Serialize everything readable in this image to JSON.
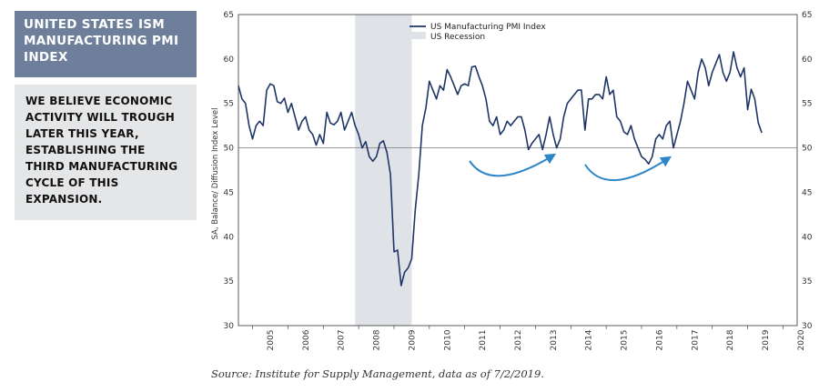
{
  "header": {
    "title": "UNITED STATES ISM\nMANUFACTURING PMI\nINDEX"
  },
  "callout": {
    "text": "WE BELIEVE ECONOMIC\nACTIVITY WILL TROUGH\nLATER THIS YEAR,\nESTABLISHING THE\nTHIRD MANUFACTURING\nCYCLE OF THIS\nEXPANSION."
  },
  "footer": {
    "source": "Source: Institute for Supply Management, data as of 7/2/2019."
  },
  "colors": {
    "series": "#1f3566",
    "recession": "#dfe2e6",
    "arrow": "#2e86c9",
    "reference_line": "#888888"
  },
  "chart_data": {
    "type": "line",
    "ylabel": "SA, Balance/ Diffusion Index Level",
    "xlabel": "",
    "ylim": [
      30,
      65
    ],
    "y_ticks": [
      30,
      35,
      40,
      45,
      50,
      55,
      60,
      65
    ],
    "x_range": [
      2004.6,
      2020.4
    ],
    "x_tick_labels": [
      "2005",
      "2006",
      "2007",
      "2008",
      "2009",
      "2010",
      "2011",
      "2012",
      "2013",
      "2014",
      "2015",
      "2016",
      "2017",
      "2018",
      "2019",
      "2020"
    ],
    "reference_line": 50,
    "grid": false,
    "legend": {
      "placement": "top-left",
      "entries": [
        "US Manufacturing PMI Index",
        "US Recession"
      ]
    },
    "recession": {
      "start": 2007.9,
      "end": 2009.5
    },
    "series": [
      {
        "name": "US Manufacturing PMI Index",
        "x": [
          2004.6,
          2004.7,
          2004.8,
          2004.9,
          2005.0,
          2005.1,
          2005.2,
          2005.3,
          2005.4,
          2005.5,
          2005.6,
          2005.7,
          2005.8,
          2005.9,
          2006.0,
          2006.1,
          2006.2,
          2006.3,
          2006.4,
          2006.5,
          2006.6,
          2006.7,
          2006.8,
          2006.9,
          2007.0,
          2007.1,
          2007.2,
          2007.3,
          2007.4,
          2007.5,
          2007.6,
          2007.7,
          2007.8,
          2007.9,
          2008.0,
          2008.1,
          2008.2,
          2008.3,
          2008.4,
          2008.5,
          2008.6,
          2008.7,
          2008.8,
          2008.9,
          2009.0,
          2009.1,
          2009.2,
          2009.3,
          2009.4,
          2009.5,
          2009.6,
          2009.7,
          2009.8,
          2009.9,
          2010.0,
          2010.1,
          2010.2,
          2010.3,
          2010.4,
          2010.5,
          2010.6,
          2010.7,
          2010.8,
          2010.9,
          2011.0,
          2011.1,
          2011.2,
          2011.3,
          2011.4,
          2011.5,
          2011.6,
          2011.7,
          2011.8,
          2011.9,
          2012.0,
          2012.1,
          2012.2,
          2012.3,
          2012.4,
          2012.5,
          2012.6,
          2012.7,
          2012.8,
          2012.9,
          2013.0,
          2013.1,
          2013.2,
          2013.3,
          2013.4,
          2013.5,
          2013.6,
          2013.7,
          2013.8,
          2013.9,
          2014.0,
          2014.1,
          2014.2,
          2014.3,
          2014.4,
          2014.5,
          2014.6,
          2014.7,
          2014.8,
          2014.9,
          2015.0,
          2015.1,
          2015.2,
          2015.3,
          2015.4,
          2015.5,
          2015.6,
          2015.7,
          2015.8,
          2015.9,
          2016.0,
          2016.1,
          2016.2,
          2016.3,
          2016.4,
          2016.5,
          2016.6,
          2016.7,
          2016.8,
          2016.9,
          2017.0,
          2017.1,
          2017.2,
          2017.3,
          2017.4,
          2017.5,
          2017.6,
          2017.7,
          2017.8,
          2017.9,
          2018.0,
          2018.1,
          2018.2,
          2018.3,
          2018.4,
          2018.5,
          2018.6,
          2018.7,
          2018.8,
          2018.9,
          2019.0,
          2019.1,
          2019.2,
          2019.3,
          2019.4
        ],
        "values": [
          57.0,
          55.5,
          55.0,
          52.5,
          51.0,
          52.5,
          53.0,
          52.5,
          56.5,
          57.2,
          57.0,
          55.2,
          55.0,
          55.6,
          54.0,
          55.0,
          53.5,
          52.0,
          53.0,
          53.5,
          52.0,
          51.5,
          50.3,
          51.5,
          50.5,
          54.0,
          52.8,
          52.6,
          53.0,
          54.0,
          52.0,
          53.0,
          54.0,
          52.5,
          51.5,
          50.0,
          50.7,
          49.0,
          48.5,
          49.0,
          50.5,
          50.8,
          49.5,
          47.0,
          38.3,
          38.5,
          34.5,
          36.0,
          36.5,
          37.5,
          43.0,
          47.0,
          52.5,
          54.5,
          57.5,
          56.5,
          55.5,
          57.0,
          56.5,
          58.8,
          58.0,
          57.0,
          56.0,
          57.0,
          57.2,
          57.0,
          59.1,
          59.2,
          58.0,
          57.0,
          55.5,
          53.0,
          52.5,
          53.5,
          51.5,
          52.0,
          53.0,
          52.5,
          53.0,
          53.5,
          53.5,
          52.0,
          49.8,
          50.5,
          51.0,
          51.5,
          49.8,
          51.5,
          53.5,
          51.5,
          50.0,
          51.0,
          53.5,
          55.0,
          55.5,
          56.0,
          56.5,
          56.5,
          52.0,
          55.5,
          55.5,
          56.0,
          56.0,
          55.5,
          58.0,
          56.0,
          56.5,
          53.5,
          53.0,
          51.8,
          51.5,
          52.5,
          51.0,
          50.0,
          49.0,
          48.7,
          48.2,
          49.0,
          51.0,
          51.5,
          51.0,
          52.5,
          53.0,
          50.0,
          51.5,
          53.0,
          55.0,
          57.5,
          56.5,
          55.5,
          58.5,
          60.0,
          59.0,
          57.0,
          58.5,
          59.5,
          60.5,
          58.5,
          57.5,
          58.5,
          60.8,
          59.0,
          58.0,
          59.0,
          54.3,
          56.6,
          55.5,
          52.8,
          51.7
        ]
      }
    ]
  }
}
